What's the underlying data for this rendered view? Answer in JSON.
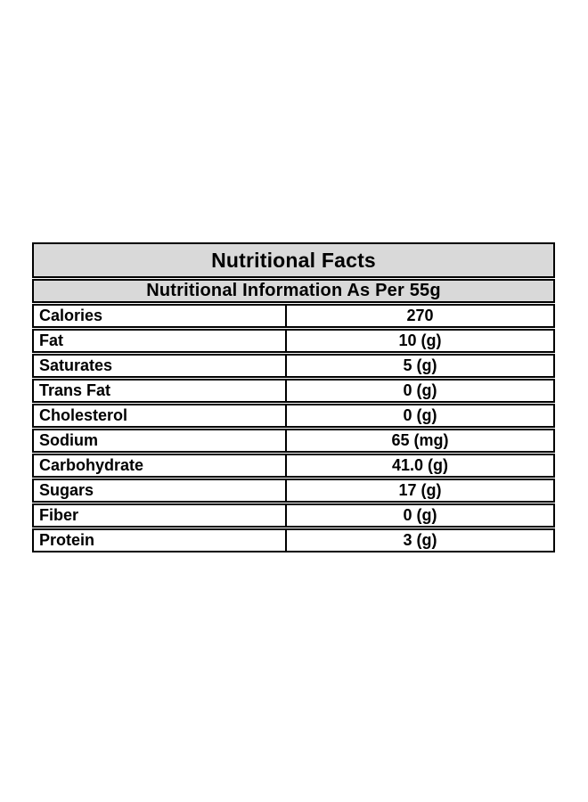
{
  "table": {
    "title": "Nutritional Facts",
    "subtitle": "Nutritional Information As Per 55g",
    "rows": [
      {
        "label": "Calories",
        "value": "270"
      },
      {
        "label": "Fat",
        "value": "10 (g)"
      },
      {
        "label": "Saturates",
        "value": "5 (g)"
      },
      {
        "label": "Trans Fat",
        "value": "0 (g)"
      },
      {
        "label": "Cholesterol",
        "value": "0 (g)"
      },
      {
        "label": "Sodium",
        "value": "65 (mg)"
      },
      {
        "label": "Carbohydrate",
        "value": "41.0 (g)"
      },
      {
        "label": "Sugars",
        "value": "17 (g)"
      },
      {
        "label": "Fiber",
        "value": "0 (g)"
      },
      {
        "label": "Protein",
        "value": "3 (g)"
      }
    ],
    "colors": {
      "header_bg": "#d9d9d9",
      "border": "#000000",
      "row_bg": "#ffffff",
      "text": "#000000"
    }
  }
}
